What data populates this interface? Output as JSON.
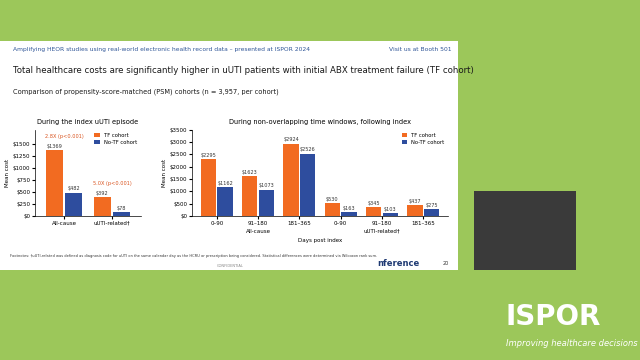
{
  "slide": {
    "header": "Amplifying HEOR studies using real-world electronic health record data – presented at ISPOR 2024",
    "booth": "Visit us at Booth 501",
    "title": "Total healthcare costs are significantly higher in uUTI patients with initial ABX treatment failure (TF cohort)",
    "subtitle": "Comparison of propensity-score-matched (PSM) cohorts (n = 3,957, per cohort)",
    "footnote": "Footnotes: †uUTI-related was defined as diagnosis code for uUTI on the same calendar day as the HCRU or prescription being considered. Statistical differences were determined via Wilcoxon rank sum.",
    "confidential": "CONFIDENTIAL",
    "brand": "nference",
    "page": "20",
    "logo": "ISPOR",
    "tagline": "Improving healthcare decisions"
  },
  "chart_data": [
    {
      "type": "bar",
      "title": "During the index uUTI episode",
      "ylabel": "Mean cost",
      "categories": [
        "All-cause",
        "uUTI-related†"
      ],
      "series": [
        {
          "name": "TF cohort",
          "color": "#f26b21",
          "values": [
            1369,
            392
          ],
          "value_labels": [
            "$1369",
            "$392"
          ]
        },
        {
          "name": "No-TF cohort",
          "color": "#2e4d9e",
          "values": [
            482,
            78
          ],
          "value_labels": [
            "$482",
            "$78"
          ]
        }
      ],
      "ylim": [
        0,
        1800
      ],
      "yticks": [
        {
          "value": 0,
          "label": "$0"
        },
        {
          "value": 250,
          "label": "$250"
        },
        {
          "value": 500,
          "label": "$500"
        },
        {
          "value": 750,
          "label": "$750"
        },
        {
          "value": 1000,
          "label": "$1000"
        },
        {
          "value": 1250,
          "label": "$1250"
        },
        {
          "value": 1500,
          "label": "$1500"
        }
      ],
      "data_labels": true,
      "legend": "upper right",
      "annotations": [
        {
          "category": "All-cause",
          "text": "2.8X (p<0.001)"
        },
        {
          "category": "uUTI-related†",
          "text": "5.0X (p<0.001)"
        }
      ]
    },
    {
      "type": "bar",
      "title": "During non-overlapping time windows, following index",
      "ylabel": "Mean cost",
      "xlabel": "Days post index",
      "categories": [
        "0–90",
        "91–180",
        "181–365",
        "0–90",
        "91–180",
        "181–365"
      ],
      "groups": [
        "All-cause",
        "All-cause",
        "All-cause",
        "uUTI-related†",
        "uUTI-related†",
        "uUTI-related†"
      ],
      "series": [
        {
          "name": "TF cohort",
          "color": "#f26b21",
          "values": [
            2295,
            1623,
            2924,
            530,
            345,
            437
          ],
          "value_labels": [
            "$2295",
            "$1623",
            "$2924",
            "$530",
            "$345",
            "$437"
          ]
        },
        {
          "name": "No-TF cohort",
          "color": "#2e4d9e",
          "values": [
            1162,
            1073,
            2526,
            163,
            103,
            275
          ],
          "value_labels": [
            "$1162",
            "$1073",
            "$2526",
            "$163",
            "$103",
            "$275"
          ]
        }
      ],
      "ylim": [
        0,
        3500
      ],
      "yticks": [
        {
          "value": 0,
          "label": "$0"
        },
        {
          "value": 500,
          "label": "$500"
        },
        {
          "value": 1000,
          "label": "$1000"
        },
        {
          "value": 1500,
          "label": "$1500"
        },
        {
          "value": 2000,
          "label": "$2000"
        },
        {
          "value": 2500,
          "label": "$2500"
        },
        {
          "value": 3000,
          "label": "$3000"
        },
        {
          "value": 3500,
          "label": "$3500"
        }
      ],
      "data_labels": true,
      "legend": "upper right"
    }
  ]
}
